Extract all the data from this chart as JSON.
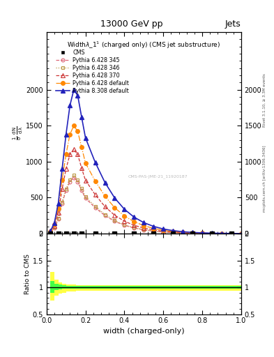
{
  "title": "13000 GeV pp",
  "title_right": "Jets",
  "subtitle": "Width$\\lambda$_1$^1$ (charged only) (CMS jet substructure)",
  "xlabel": "width (charged-only)",
  "right_label_top": "Rivet 3.1.10, ≥ 3.3M events",
  "right_label_bottom": "mcplots.cern.ch [arXiv:1306.3436]",
  "xlim": [
    0,
    1
  ],
  "ylim_main": [
    0,
    2800
  ],
  "ylim_ratio": [
    0.5,
    2.0
  ],
  "x_data": [
    0.02,
    0.04,
    0.06,
    0.08,
    0.1,
    0.12,
    0.14,
    0.16,
    0.18,
    0.2,
    0.25,
    0.3,
    0.35,
    0.4,
    0.45,
    0.5,
    0.55,
    0.6,
    0.65,
    0.7,
    0.75,
    0.8,
    0.85,
    0.9,
    0.95,
    1.0
  ],
  "py6_345_y": [
    20,
    80,
    200,
    420,
    600,
    720,
    780,
    720,
    600,
    490,
    360,
    250,
    170,
    115,
    78,
    52,
    34,
    21,
    13,
    8,
    5,
    3,
    2,
    1,
    0.5,
    0
  ],
  "py6_346_y": [
    20,
    85,
    210,
    440,
    620,
    750,
    810,
    750,
    630,
    510,
    380,
    265,
    180,
    122,
    83,
    56,
    36,
    23,
    14,
    9,
    6,
    4,
    2,
    1,
    0.5,
    0
  ],
  "py6_370_y": [
    25,
    110,
    290,
    620,
    900,
    1100,
    1170,
    1100,
    910,
    740,
    540,
    375,
    255,
    172,
    115,
    77,
    50,
    32,
    20,
    12,
    8,
    5,
    3,
    2,
    1,
    0
  ],
  "py6_def_y": [
    30,
    130,
    350,
    750,
    1100,
    1380,
    1500,
    1420,
    1200,
    980,
    730,
    520,
    360,
    245,
    165,
    110,
    72,
    46,
    29,
    18,
    11,
    7,
    4,
    3,
    1,
    0
  ],
  "py8_def_y": [
    35,
    150,
    420,
    900,
    1380,
    1780,
    2000,
    1920,
    1620,
    1330,
    990,
    710,
    495,
    338,
    228,
    152,
    100,
    64,
    41,
    26,
    16,
    10,
    6,
    4,
    2,
    0
  ],
  "cms_x": [
    0.02,
    0.06,
    0.1,
    0.14,
    0.18,
    0.25,
    0.35,
    0.45,
    0.55,
    0.65,
    0.75,
    0.85,
    0.95
  ],
  "ratio_x": [
    0.0,
    0.02,
    0.04,
    0.06,
    0.08,
    0.1,
    0.15,
    0.2,
    0.25,
    0.3,
    0.35,
    0.4,
    0.5,
    0.6,
    0.7,
    0.8,
    0.9,
    1.0
  ],
  "ratio_green_upper": [
    1.0,
    1.12,
    1.07,
    1.05,
    1.04,
    1.03,
    1.02,
    1.02,
    1.02,
    1.02,
    1.02,
    1.02,
    1.02,
    1.02,
    1.02,
    1.02,
    1.02,
    1.02
  ],
  "ratio_green_lower": [
    1.0,
    0.9,
    0.95,
    0.96,
    0.97,
    0.97,
    0.98,
    0.98,
    0.98,
    0.98,
    0.98,
    0.98,
    0.98,
    0.98,
    0.98,
    0.98,
    0.98,
    0.98
  ],
  "ratio_yellow_upper": [
    1.0,
    1.28,
    1.14,
    1.09,
    1.07,
    1.05,
    1.04,
    1.04,
    1.04,
    1.04,
    1.04,
    1.04,
    1.04,
    1.04,
    1.04,
    1.04,
    1.04,
    1.04
  ],
  "ratio_yellow_lower": [
    1.0,
    0.75,
    0.85,
    0.88,
    0.9,
    0.92,
    0.93,
    0.94,
    0.94,
    0.94,
    0.94,
    0.94,
    0.94,
    0.94,
    0.94,
    0.94,
    0.94,
    0.94
  ],
  "colors": {
    "py6_345": "#dd6677",
    "py6_346": "#bb9944",
    "py6_370": "#cc3333",
    "py6_def": "#ff8800",
    "py8_def": "#2222bb",
    "cms": "#000000"
  },
  "legend_entries": [
    "CMS",
    "Pythia 6.428 345",
    "Pythia 6.428 346",
    "Pythia 6.428 370",
    "Pythia 6.428 default",
    "Pythia 8.308 default"
  ],
  "watermark": "CMS-PAS-JME-21_11920187",
  "yticks_main": [
    0,
    500,
    1000,
    1500,
    2000
  ],
  "ytick_labels_main": [
    "0",
    "500",
    "1000",
    "1500",
    "2000"
  ],
  "yticks_ratio": [
    0.5,
    1.0,
    1.5,
    2.0
  ],
  "ytick_labels_ratio": [
    "0.5",
    "1",
    "1.5",
    "2"
  ]
}
